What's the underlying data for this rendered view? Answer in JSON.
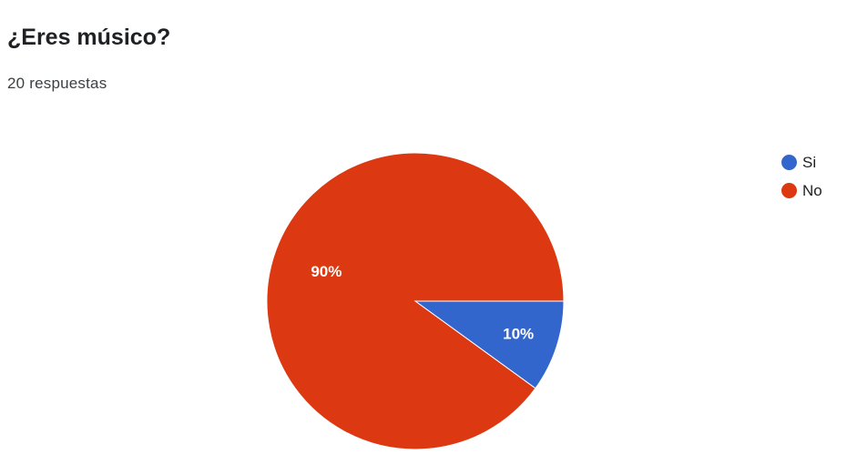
{
  "header": {
    "title": "¿Eres músico?",
    "response_count": "20 respuestas"
  },
  "chart_data": {
    "type": "pie",
    "title": "¿Eres músico?",
    "categories": [
      "Si",
      "No"
    ],
    "values": [
      10,
      90
    ],
    "labels": [
      "10%",
      "90%"
    ],
    "colors": [
      "#3366cc",
      "#dc3912"
    ],
    "legend_position": "right"
  }
}
